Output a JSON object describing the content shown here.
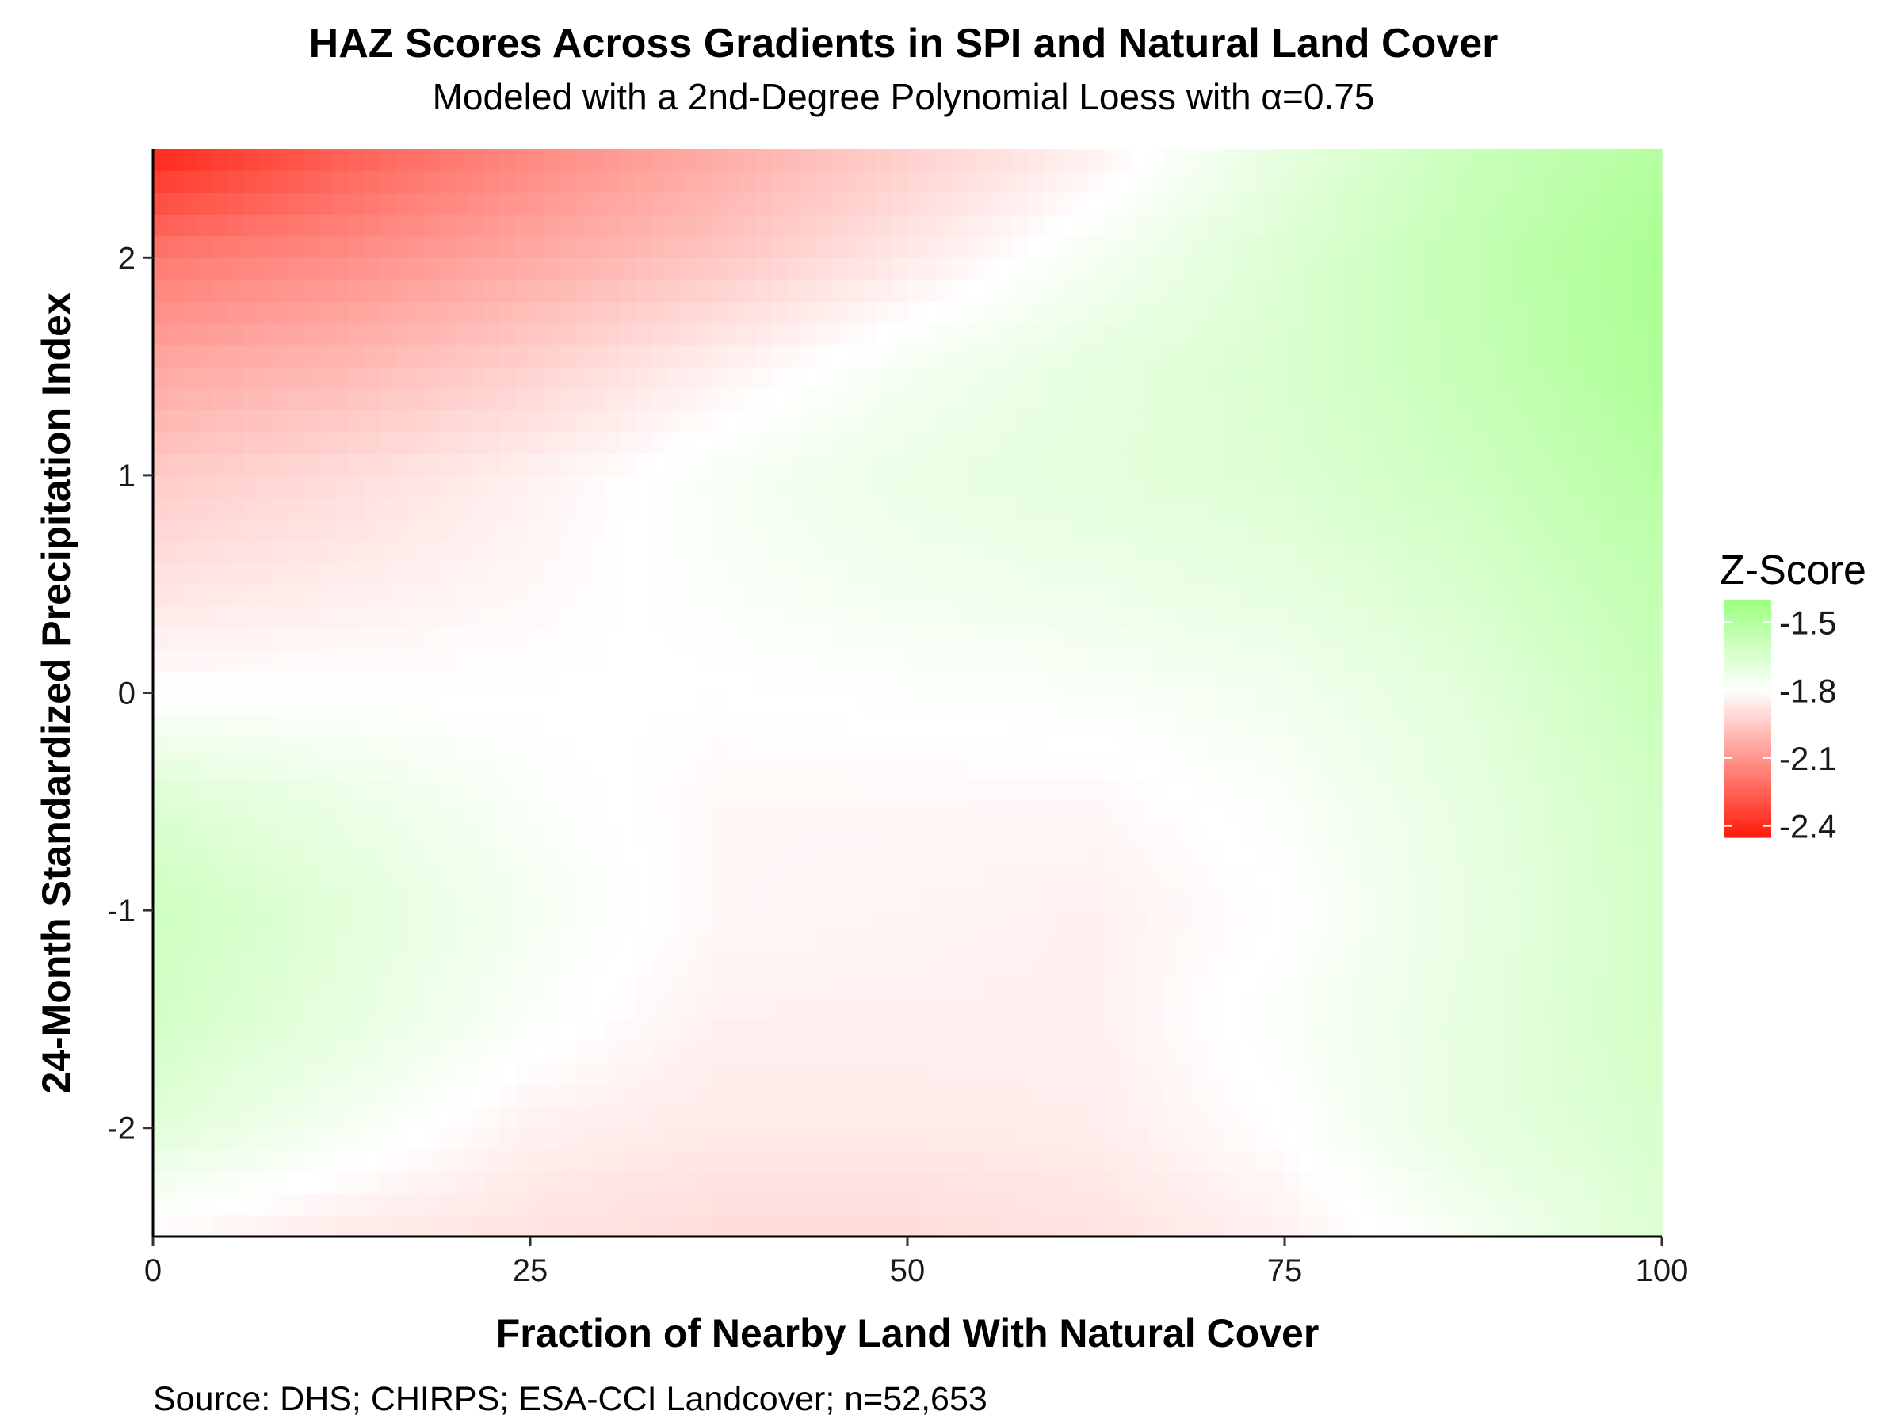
{
  "chart_data": {
    "type": "heatmap",
    "title": "HAZ Scores Across Gradients in SPI and Natural Land Cover",
    "subtitle": "Modeled with a 2nd-Degree Polynomial Loess with α=0.75",
    "xlabel": "Fraction of Nearby Land With Natural Cover",
    "ylabel": "24-Month Standardized Precipitation Index",
    "caption": "Source: DHS; CHIRPS; ESA-CCI Landcover; n=52,653",
    "xlim": [
      0,
      100
    ],
    "ylim": [
      -2.5,
      2.5
    ],
    "x_ticks": [
      0,
      25,
      50,
      75,
      100
    ],
    "y_ticks": [
      -2,
      -1,
      0,
      1,
      2
    ],
    "x_tick_labels": [
      "0",
      "25",
      "50",
      "75",
      "100"
    ],
    "y_tick_labels": [
      "-2",
      "-1",
      "0",
      "1",
      "2"
    ],
    "grid": false,
    "legend": {
      "title": "Z-Score",
      "placement": "right",
      "range": [
        -2.45,
        -1.4
      ],
      "ticks": [
        -1.5,
        -1.8,
        -2.1,
        -2.4
      ],
      "tick_labels": [
        "-1.5",
        "-1.8",
        "-2.1",
        "-2.4"
      ],
      "colors": {
        "low": "#ff1a0a",
        "mid": "#ffffff",
        "high": "#9cff80"
      },
      "midpoint": -1.8
    },
    "x": [
      0,
      12.5,
      25,
      37.5,
      50,
      62.5,
      75,
      87.5,
      100
    ],
    "y": [
      -2.5,
      -2,
      -1.5,
      -1,
      -0.5,
      0,
      0.5,
      1,
      1.5,
      2,
      2.5
    ],
    "z": [
      [
        -1.82,
        -1.86,
        -1.88,
        -1.9,
        -1.9,
        -1.88,
        -1.84,
        -1.76,
        -1.66
      ],
      [
        -1.68,
        -1.76,
        -1.84,
        -1.86,
        -1.86,
        -1.85,
        -1.8,
        -1.7,
        -1.64
      ],
      [
        -1.62,
        -1.7,
        -1.78,
        -1.84,
        -1.84,
        -1.84,
        -1.78,
        -1.7,
        -1.62
      ],
      [
        -1.6,
        -1.68,
        -1.76,
        -1.82,
        -1.83,
        -1.84,
        -1.8,
        -1.71,
        -1.62
      ],
      [
        -1.66,
        -1.72,
        -1.78,
        -1.82,
        -1.82,
        -1.82,
        -1.78,
        -1.7,
        -1.61
      ],
      [
        -1.8,
        -1.8,
        -1.8,
        -1.8,
        -1.79,
        -1.78,
        -1.75,
        -1.68,
        -1.58
      ],
      [
        -1.88,
        -1.85,
        -1.82,
        -1.78,
        -1.75,
        -1.73,
        -1.7,
        -1.64,
        -1.55
      ],
      [
        -1.95,
        -1.9,
        -1.84,
        -1.77,
        -1.72,
        -1.69,
        -1.66,
        -1.6,
        -1.51
      ],
      [
        -2.05,
        -2.0,
        -1.93,
        -1.84,
        -1.76,
        -1.7,
        -1.65,
        -1.57,
        -1.47
      ],
      [
        -2.18,
        -2.12,
        -2.04,
        -1.96,
        -1.86,
        -1.76,
        -1.66,
        -1.56,
        -1.46
      ],
      [
        -2.42,
        -2.26,
        -2.14,
        -2.04,
        -1.94,
        -1.84,
        -1.7,
        -1.58,
        -1.5
      ]
    ]
  }
}
